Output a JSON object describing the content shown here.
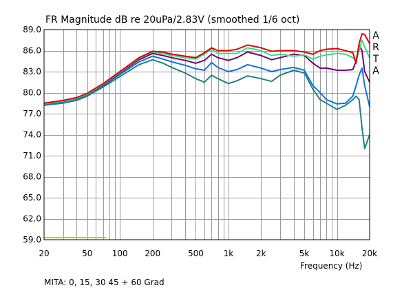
{
  "chart_data": {
    "type": "line",
    "title": "FR Magnitude dB re 20uPa/2.83V (smoothed 1/6 oct)",
    "xlabel": "Frequency (Hz)",
    "ylabel": "",
    "footer": "MITA: 0, 15, 30 45 + 60 Grad",
    "brand": [
      "A",
      "R",
      "T",
      "A"
    ],
    "x_scale": "log",
    "xlim": [
      20,
      20000
    ],
    "ylim": [
      59,
      89
    ],
    "grid": true,
    "x_ticks": [
      20,
      50,
      100,
      200,
      500,
      1000,
      2000,
      5000,
      10000,
      20000
    ],
    "x_tick_labels": [
      "20",
      "50",
      "100",
      "200",
      "500",
      "1k",
      "2k",
      "5k",
      "10k",
      "20k"
    ],
    "y_ticks": [
      59,
      62,
      65,
      68,
      71,
      74,
      77,
      80,
      83,
      86,
      89
    ],
    "y_tick_labels": [
      "59.0",
      "62.0",
      "65.0",
      "68.0",
      "71.0",
      "74.0",
      "77.0",
      "80.0",
      "83.0",
      "86.0",
      "89.0"
    ],
    "reference_line": {
      "x": [
        20,
        75
      ],
      "y": 59.3,
      "color": "#c8c800"
    },
    "series": [
      {
        "color": "#e00000",
        "x": [
          20,
          30,
          40,
          50,
          70,
          100,
          150,
          200,
          250,
          300,
          400,
          500,
          600,
          700,
          800,
          1000,
          1200,
          1500,
          2000,
          2500,
          3000,
          4000,
          5000,
          6000,
          7000,
          8000,
          10000,
          12000,
          14000,
          15000,
          16000,
          17000,
          18000,
          20000
        ],
        "y": [
          78.5,
          78.9,
          79.3,
          79.9,
          81.3,
          83.0,
          85.0,
          85.9,
          85.8,
          85.5,
          85.2,
          85.0,
          85.7,
          86.4,
          86.0,
          86.0,
          86.2,
          86.8,
          86.4,
          85.9,
          86.0,
          86.0,
          85.8,
          85.5,
          86.0,
          86.2,
          86.3,
          86.0,
          85.7,
          84.2,
          87.0,
          88.4,
          88.3,
          87.0
        ]
      },
      {
        "color": "#30e080",
        "x": [
          20,
          30,
          40,
          50,
          70,
          100,
          150,
          200,
          250,
          300,
          400,
          500,
          600,
          700,
          800,
          1000,
          1200,
          1500,
          2000,
          2500,
          3000,
          4000,
          5000,
          6000,
          7000,
          8000,
          10000,
          12000,
          14000,
          15000,
          16000,
          17000,
          18000,
          20000
        ],
        "y": [
          78.4,
          78.8,
          79.2,
          79.8,
          81.2,
          82.9,
          84.9,
          85.8,
          85.6,
          85.3,
          85.0,
          84.8,
          85.5,
          86.2,
          85.6,
          85.6,
          85.6,
          86.4,
          86.0,
          85.3,
          85.5,
          85.2,
          85.4,
          84.8,
          85.2,
          85.4,
          85.6,
          85.5,
          85.0,
          84.5,
          86.0,
          87.5,
          86.5,
          85.0
        ]
      },
      {
        "color": "#700070",
        "x": [
          20,
          30,
          40,
          50,
          70,
          100,
          150,
          200,
          250,
          300,
          400,
          500,
          600,
          700,
          800,
          1000,
          1200,
          1500,
          2000,
          2500,
          3000,
          4000,
          5000,
          6000,
          7000,
          8000,
          10000,
          12000,
          14000,
          15000,
          16000,
          17000,
          18000,
          20000
        ],
        "y": [
          78.4,
          78.8,
          79.2,
          79.8,
          81.1,
          82.8,
          84.7,
          85.6,
          85.3,
          85.0,
          84.6,
          84.2,
          84.6,
          85.5,
          85.0,
          84.6,
          85.0,
          85.8,
          85.3,
          84.7,
          85.0,
          85.5,
          85.3,
          84.2,
          83.5,
          83.5,
          83.2,
          83.2,
          83.3,
          84.5,
          86.8,
          86.0,
          83.0,
          81.5
        ]
      },
      {
        "color": "#1070e0",
        "x": [
          20,
          30,
          40,
          50,
          70,
          100,
          150,
          200,
          250,
          300,
          400,
          500,
          600,
          700,
          800,
          1000,
          1200,
          1500,
          2000,
          2500,
          3000,
          4000,
          5000,
          6000,
          7000,
          8000,
          10000,
          12000,
          14000,
          15000,
          16000,
          17000,
          18000,
          20000
        ],
        "y": [
          78.3,
          78.7,
          79.1,
          79.7,
          81.0,
          82.6,
          84.4,
          85.2,
          84.8,
          84.4,
          83.9,
          83.4,
          83.2,
          84.3,
          83.6,
          83.0,
          83.3,
          84.0,
          83.5,
          83.0,
          83.3,
          83.6,
          83.2,
          81.0,
          80.0,
          79.0,
          78.4,
          78.5,
          79.5,
          81.0,
          82.5,
          83.5,
          81.0,
          78.0
        ]
      },
      {
        "color": "#208080",
        "x": [
          20,
          30,
          40,
          50,
          70,
          100,
          150,
          200,
          250,
          300,
          400,
          500,
          600,
          700,
          800,
          1000,
          1200,
          1500,
          2000,
          2500,
          3000,
          4000,
          5000,
          6000,
          7000,
          8000,
          10000,
          12000,
          14000,
          15000,
          16000,
          17000,
          18000,
          20000
        ],
        "y": [
          78.2,
          78.5,
          78.9,
          79.5,
          80.8,
          82.3,
          84.0,
          84.7,
          84.2,
          83.6,
          82.8,
          82.0,
          81.5,
          82.5,
          82.0,
          81.3,
          81.7,
          82.4,
          82.0,
          81.6,
          82.5,
          83.2,
          82.8,
          80.5,
          79.0,
          78.5,
          77.6,
          78.2,
          79.0,
          79.5,
          79.0,
          75.0,
          72.0,
          74.0
        ]
      }
    ]
  }
}
